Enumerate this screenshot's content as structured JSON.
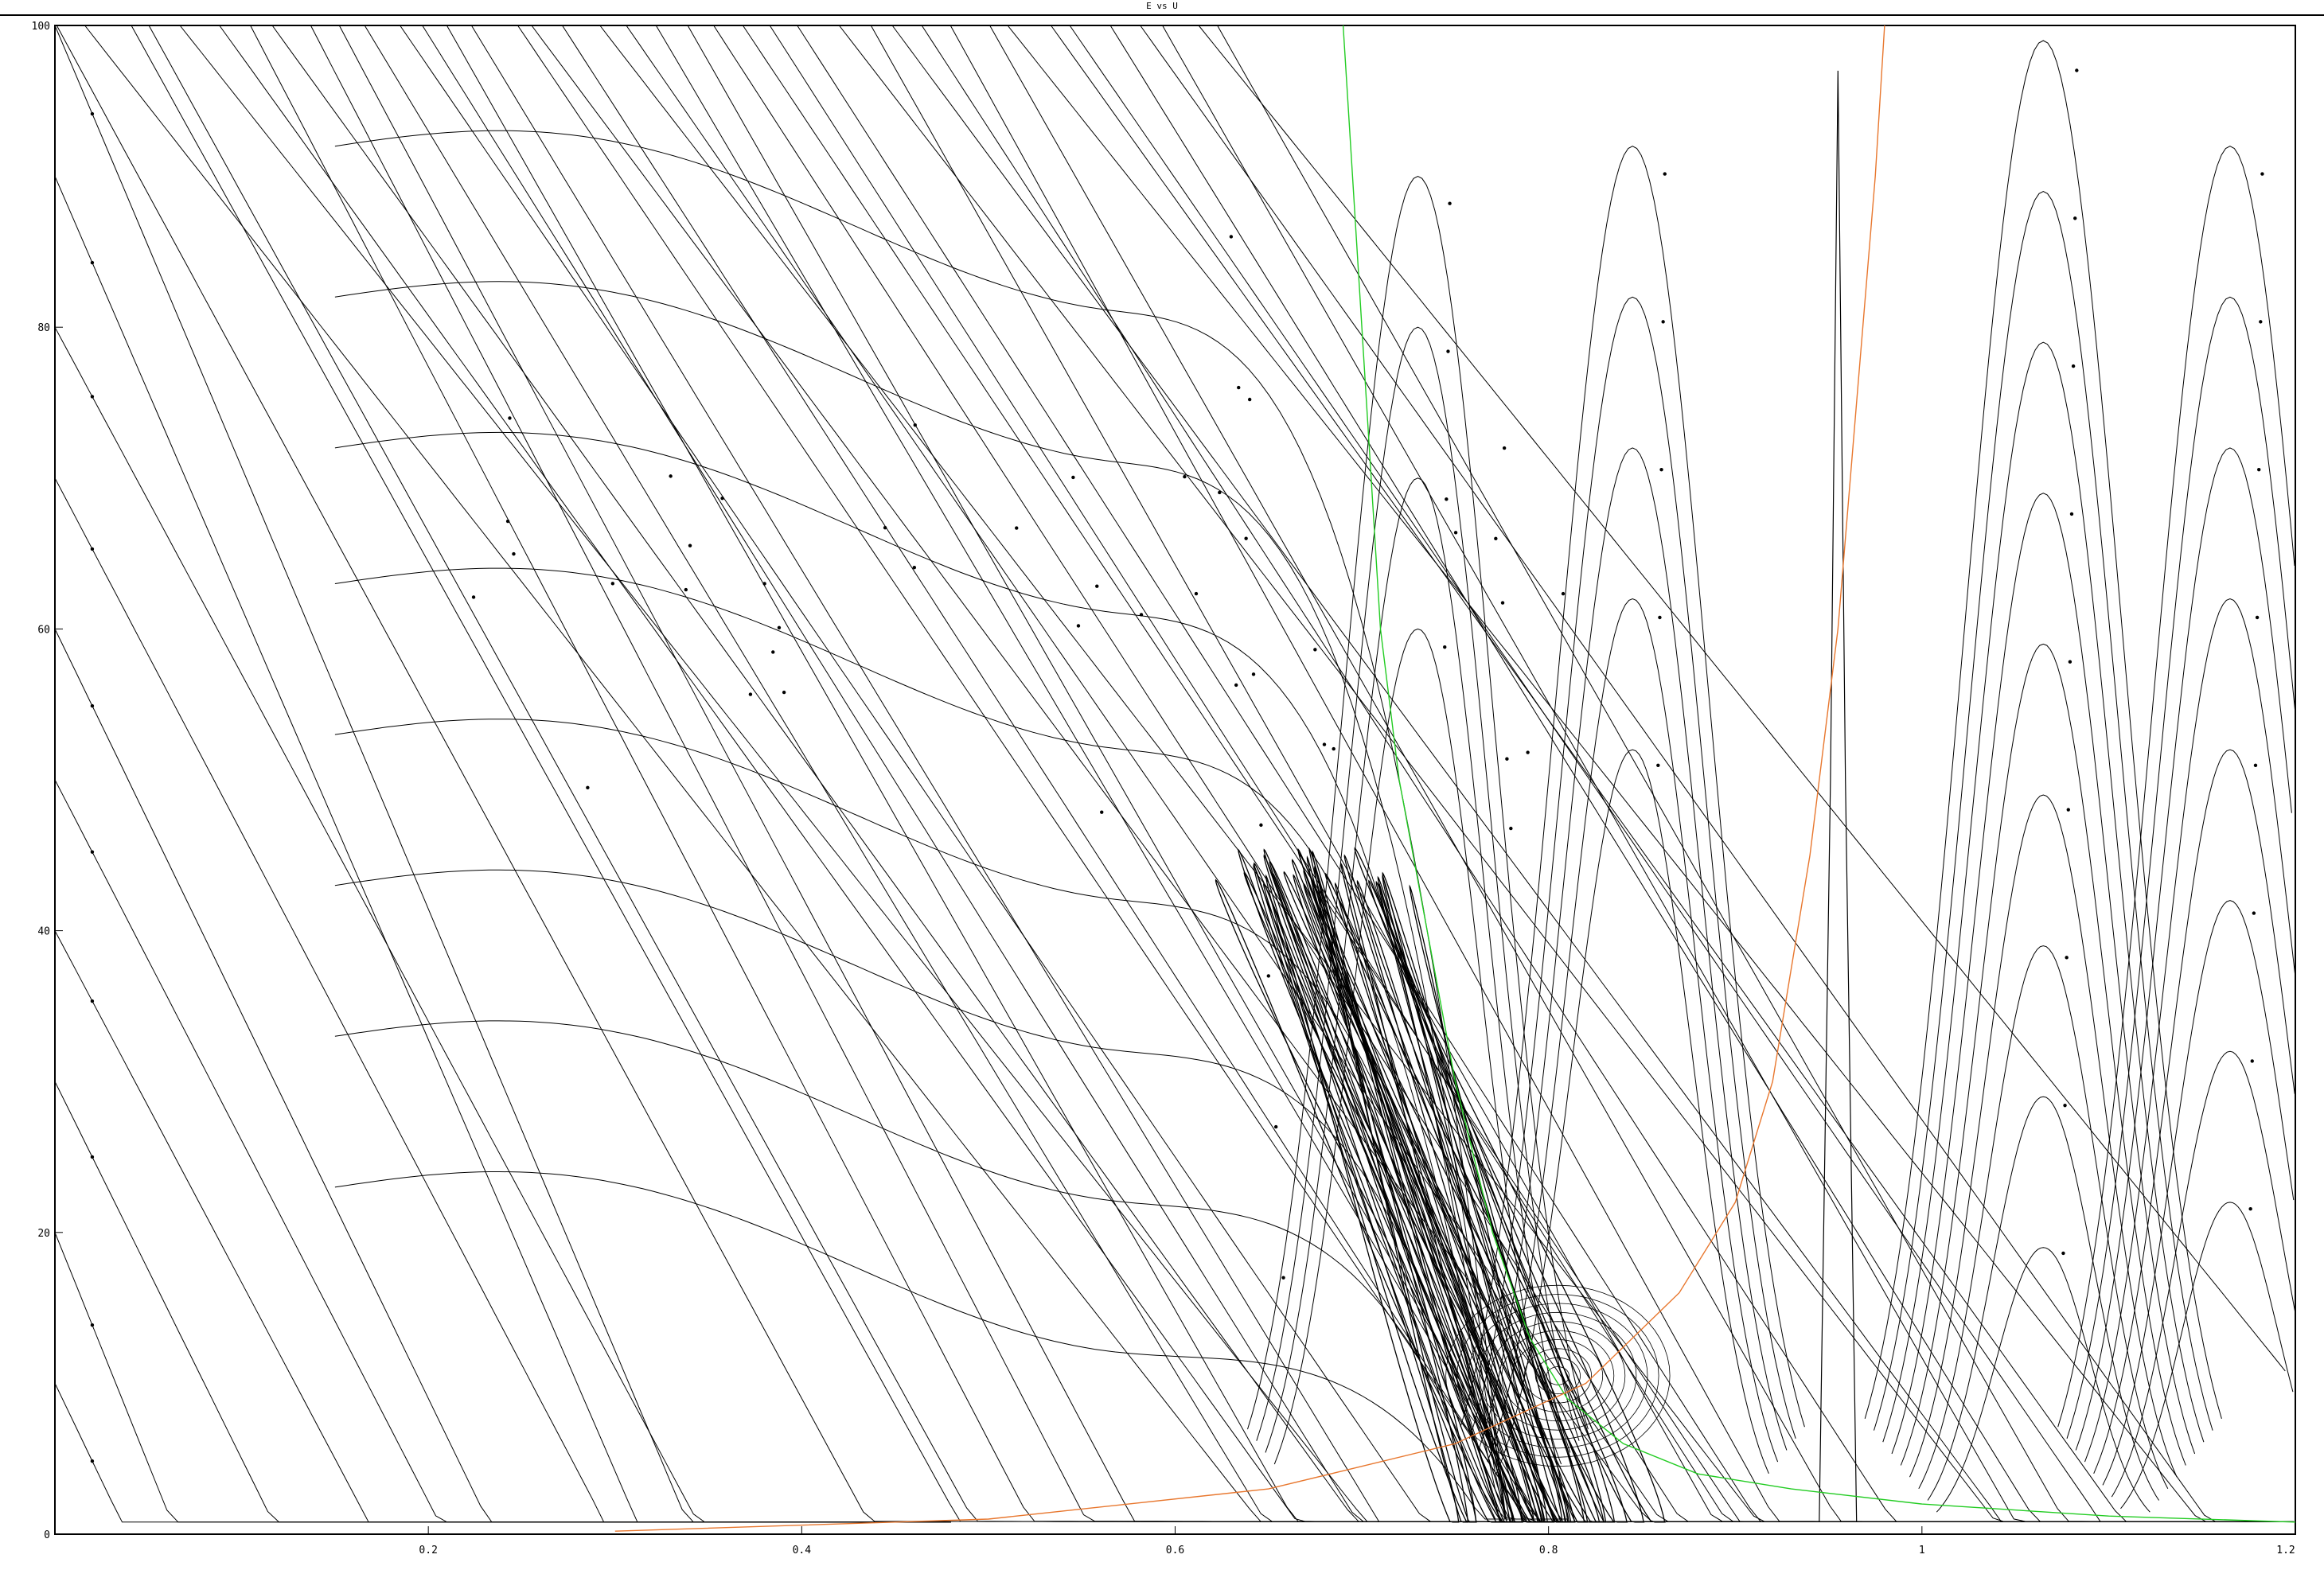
{
  "window": {
    "title": "E vs U"
  },
  "colors": {
    "trajectory": "#000000",
    "nullcline_e": "#22cc22",
    "nullcline_u": "#e8772e",
    "axes": "#000000",
    "background": "#ffffff"
  },
  "chart_data": {
    "type": "line",
    "title": "E vs U",
    "xlabel": "",
    "ylabel": "",
    "xlim": [
      0,
      1.2
    ],
    "ylim": [
      0,
      100
    ],
    "grid": false,
    "legend": "none",
    "x_ticks": [
      {
        "value": 0.2,
        "label": "0.2"
      },
      {
        "value": 0.4,
        "label": "0.4"
      },
      {
        "value": 0.6,
        "label": "0.6"
      },
      {
        "value": 0.8,
        "label": "0.8"
      },
      {
        "value": 1.0,
        "label": "1"
      },
      {
        "value": 1.2,
        "label": "1.2"
      }
    ],
    "y_ticks": [
      {
        "value": 0,
        "label": "0"
      },
      {
        "value": 20,
        "label": "20"
      },
      {
        "value": 40,
        "label": "40"
      },
      {
        "value": 60,
        "label": "60"
      },
      {
        "value": 80,
        "label": "80"
      },
      {
        "value": 100,
        "label": "100"
      }
    ],
    "nullclines": [
      {
        "color": "#22cc22",
        "points": [
          [
            0.69,
            100
          ],
          [
            0.695,
            90
          ],
          [
            0.7,
            80
          ],
          [
            0.705,
            70
          ],
          [
            0.71,
            60
          ],
          [
            0.72,
            50
          ],
          [
            0.735,
            40
          ],
          [
            0.75,
            30
          ],
          [
            0.77,
            20
          ],
          [
            0.79,
            13
          ],
          [
            0.81,
            9
          ],
          [
            0.84,
            6
          ],
          [
            0.88,
            4
          ],
          [
            0.93,
            3
          ],
          [
            1.0,
            2
          ],
          [
            1.1,
            1.2
          ],
          [
            1.2,
            0.8
          ]
        ]
      },
      {
        "color": "#e8772e",
        "points": [
          [
            0.3,
            0.2
          ],
          [
            0.5,
            1
          ],
          [
            0.65,
            3
          ],
          [
            0.75,
            6
          ],
          [
            0.82,
            10
          ],
          [
            0.87,
            16
          ],
          [
            0.9,
            22
          ],
          [
            0.92,
            30
          ],
          [
            0.94,
            45
          ],
          [
            0.955,
            60
          ],
          [
            0.965,
            75
          ],
          [
            0.975,
            90
          ],
          [
            0.98,
            100
          ]
        ]
      }
    ],
    "trajectory_families": {
      "descending_lines": {
        "count": 40,
        "u_start_range": [
          0.0,
          0.62
        ],
        "e_start": 100,
        "slope_de_du": -180
      },
      "left_edge_starts": {
        "e_values": [
          100,
          90,
          80,
          70,
          60,
          50,
          40,
          30,
          20,
          10
        ]
      },
      "wave_curves": {
        "count": 8,
        "levels": [
          92,
          82,
          72,
          63,
          53,
          43,
          33,
          23
        ]
      },
      "limit_cycle": {
        "u_range": [
          0.66,
          0.82
        ],
        "e_peak": 50,
        "loops": 36
      },
      "arches": [
        {
          "u_center": 0.73,
          "peaks": [
            90,
            80,
            70,
            60
          ]
        },
        {
          "u_center": 0.845,
          "peaks": [
            92,
            82,
            72,
            62,
            52
          ]
        },
        {
          "u_center": 1.065,
          "peaks": [
            99,
            89,
            79,
            69,
            59,
            49,
            39,
            29,
            19
          ]
        },
        {
          "u_center": 1.165,
          "peaks": [
            92,
            82,
            72,
            62,
            52,
            42,
            32,
            22
          ]
        }
      ],
      "spike": {
        "u": 0.955,
        "e_peak": 97
      }
    }
  }
}
